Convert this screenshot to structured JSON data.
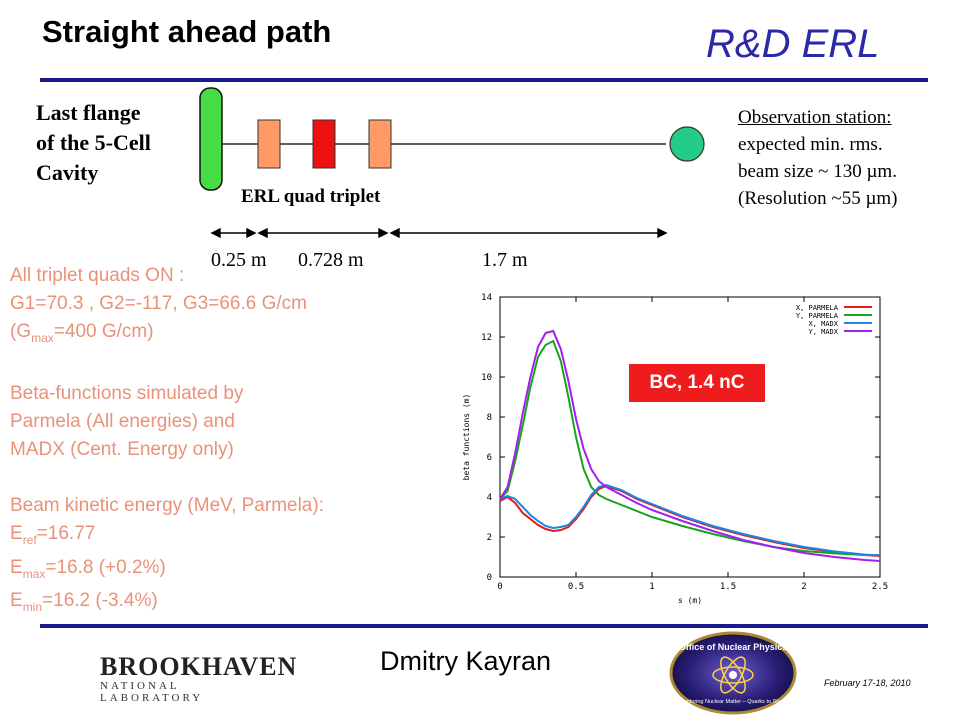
{
  "header": {
    "title": "Straight ahead path",
    "brand": "R&D ERL"
  },
  "diagram": {
    "flange_label": [
      "Last flange",
      "of the 5-Cell",
      "Cavity"
    ],
    "triplet_label": "ERL quad triplet",
    "observation": {
      "title": "Observation station:",
      "lines": [
        "expected min. rms.",
        "beam size ~ 130 µm.",
        "(Resolution ~55 µm)"
      ]
    },
    "distances": [
      "0.25 m",
      "0.728 m",
      "1.7 m"
    ],
    "colors": {
      "flange": "#44dd44",
      "quad_outer": "#ff9966",
      "quad_center": "#ee1111",
      "station": "#22cc88"
    }
  },
  "settings_text": {
    "line1": "All triplet quads ON :",
    "line2": "G1=70.3 , G2=-117, G3=66.6 G/cm",
    "line3_pre": "(G",
    "line3_sub": "max",
    "line3_post": "=400 G/cm)",
    "beta_lines": [
      "Beta-functions simulated by",
      "Parmela (All energies) and",
      "MADX (Cent. Energy only)"
    ],
    "energy_title": "Beam kinetic energy (MeV, Parmela):",
    "energies": [
      {
        "pre": "E",
        "sub": "ref",
        "post": "=16.77"
      },
      {
        "pre": "E",
        "sub": "max",
        "post": "=16.8 (+0.2%)"
      },
      {
        "pre": "E",
        "sub": "min",
        "post": "=16.2 (-3.4%)"
      }
    ]
  },
  "badge": "BC, 1.4 nC",
  "footer": {
    "author": "Dmitry Kayran",
    "date": "February 17-18, 2010",
    "lab_name": "BROOKHAVEN",
    "lab_sub": "NATIONAL LABORATORY",
    "doe_top": "Office of Nuclear Physics",
    "doe_bottom": "Exploring Nuclear Matter – Quarks to Stars"
  },
  "chart_data": {
    "type": "line",
    "xlabel": "s (m)",
    "ylabel": "beta functions (m)",
    "xlim": [
      0,
      2.5
    ],
    "ylim": [
      0,
      14
    ],
    "xticks": [
      "0",
      "0.5",
      "1",
      "1.5",
      "2",
      "2.5"
    ],
    "yticks": [
      "0",
      "2",
      "4",
      "6",
      "8",
      "10",
      "12",
      "14"
    ],
    "grid": false,
    "legend_position": "top-right",
    "series": [
      {
        "name": "X, PARMELA",
        "color": "#e41a1c",
        "x": [
          0,
          0.05,
          0.1,
          0.15,
          0.2,
          0.25,
          0.3,
          0.35,
          0.4,
          0.45,
          0.5,
          0.55,
          0.6,
          0.65,
          0.7,
          0.8,
          0.9,
          1.0,
          1.2,
          1.4,
          1.6,
          1.8,
          2.0,
          2.2,
          2.4,
          2.5
        ],
        "y": [
          3.8,
          4.0,
          3.7,
          3.2,
          2.9,
          2.6,
          2.4,
          2.3,
          2.35,
          2.5,
          2.9,
          3.4,
          4.0,
          4.4,
          4.55,
          4.3,
          3.9,
          3.6,
          3.0,
          2.5,
          2.1,
          1.75,
          1.45,
          1.25,
          1.1,
          1.05
        ]
      },
      {
        "name": "Y, PARMELA",
        "color": "#1aa31a",
        "x": [
          0,
          0.05,
          0.1,
          0.15,
          0.2,
          0.25,
          0.3,
          0.35,
          0.4,
          0.45,
          0.5,
          0.55,
          0.6,
          0.65,
          0.7,
          0.8,
          0.9,
          1.0,
          1.2,
          1.4,
          1.6,
          1.8,
          2.0,
          2.2,
          2.4,
          2.5
        ],
        "y": [
          3.9,
          4.3,
          5.8,
          7.6,
          9.5,
          11.0,
          11.6,
          11.8,
          10.8,
          9.0,
          7.0,
          5.4,
          4.5,
          4.1,
          3.9,
          3.6,
          3.3,
          3.0,
          2.55,
          2.15,
          1.8,
          1.5,
          1.3,
          1.18,
          1.1,
          1.1
        ]
      },
      {
        "name": "X, MADX",
        "color": "#1c86e4",
        "x": [
          0,
          0.05,
          0.1,
          0.15,
          0.2,
          0.25,
          0.3,
          0.35,
          0.4,
          0.45,
          0.5,
          0.55,
          0.6,
          0.65,
          0.7,
          0.8,
          0.9,
          1.0,
          1.2,
          1.4,
          1.6,
          1.8,
          2.0,
          2.2,
          2.4,
          2.5
        ],
        "y": [
          3.9,
          4.05,
          3.9,
          3.5,
          3.1,
          2.8,
          2.55,
          2.45,
          2.5,
          2.6,
          3.0,
          3.5,
          4.1,
          4.5,
          4.6,
          4.35,
          3.95,
          3.65,
          3.05,
          2.55,
          2.15,
          1.8,
          1.5,
          1.28,
          1.12,
          1.08
        ]
      },
      {
        "name": "Y, MADX",
        "color": "#a020f0",
        "x": [
          0,
          0.05,
          0.1,
          0.15,
          0.2,
          0.25,
          0.3,
          0.35,
          0.4,
          0.45,
          0.5,
          0.55,
          0.6,
          0.65,
          0.7,
          0.8,
          0.9,
          1.0,
          1.2,
          1.4,
          1.6,
          1.8,
          2.0,
          2.2,
          2.4,
          2.5
        ],
        "y": [
          3.9,
          4.5,
          6.2,
          8.2,
          10.0,
          11.5,
          12.2,
          12.3,
          11.4,
          9.8,
          7.9,
          6.4,
          5.4,
          4.8,
          4.5,
          4.1,
          3.7,
          3.35,
          2.8,
          2.3,
          1.85,
          1.5,
          1.2,
          1.0,
          0.85,
          0.8
        ]
      }
    ]
  }
}
